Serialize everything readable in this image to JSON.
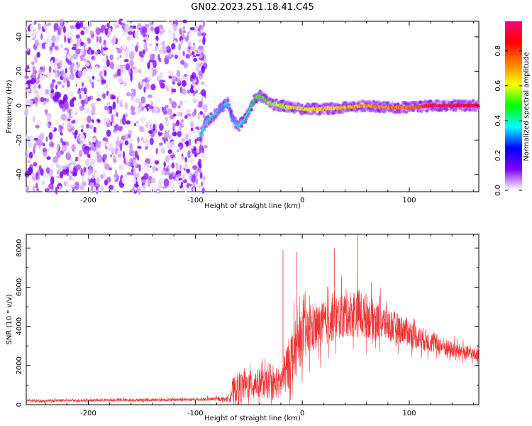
{
  "title": "GN02.2023.251.18.41.C45",
  "chart_data": [
    {
      "type": "heatmap",
      "name": "spectrogram",
      "xlabel": "Height of straight line (km)",
      "ylabel": "Frequency (Hz)",
      "xlim": [
        -258,
        165
      ],
      "ylim": [
        -50,
        49
      ],
      "xticks": [
        -200,
        -100,
        0,
        100
      ],
      "yticks": [
        -40,
        -20,
        0,
        20,
        40
      ],
      "grid": false,
      "noise_region_x": [
        -258,
        -90
      ],
      "ridge": {
        "x": [
          -95,
          -90,
          -85,
          -80,
          -75,
          -70,
          -65,
          -60,
          -55,
          -50,
          -45,
          -40,
          -35,
          -30,
          -20,
          -10,
          0,
          20,
          40,
          60,
          80,
          100,
          120,
          140,
          165
        ],
        "y": [
          -17,
          -10,
          -7,
          -4,
          -1,
          2,
          -8,
          -12,
          -9,
          -4,
          3,
          6,
          4,
          1,
          0,
          -1,
          -2,
          -2,
          -1,
          0,
          -1,
          -1,
          0,
          0,
          0
        ],
        "amplitude": [
          0.35,
          0.4,
          0.45,
          0.4,
          0.35,
          0.4,
          0.35,
          0.4,
          0.45,
          0.45,
          0.5,
          0.55,
          0.55,
          0.6,
          0.62,
          0.65,
          0.65,
          0.7,
          0.72,
          0.75,
          0.78,
          0.8,
          0.92,
          0.95,
          0.97
        ]
      },
      "colorbar": {
        "label": "Normalized spectral amplitude",
        "range": [
          0,
          0.97
        ],
        "ticks": [
          "0.0",
          "0.2",
          "0.4",
          "0.6",
          "0.8"
        ],
        "colormap": [
          "#ffffff",
          "#8000ff",
          "#0000ff",
          "#00ffff",
          "#00ff00",
          "#ffff00",
          "#ff8000",
          "#ff0000",
          "#ff0080"
        ]
      }
    },
    {
      "type": "line",
      "name": "snr",
      "xlabel": "Height of straight line (km)",
      "ylabel": "SNR (10 * v/v)",
      "xlim": [
        -258,
        165
      ],
      "ylim": [
        0,
        8700
      ],
      "xticks": [
        -200,
        -100,
        0,
        100
      ],
      "yticks": [
        0,
        2000,
        4000,
        6000,
        8000
      ],
      "grid": false,
      "color": "#ee3333",
      "envelope": {
        "x": [
          -258,
          -200,
          -150,
          -100,
          -70,
          -65,
          -60,
          -50,
          -40,
          -30,
          -20,
          -15,
          -10,
          -5,
          0,
          10,
          20,
          30,
          40,
          50,
          60,
          70,
          80,
          90,
          100,
          110,
          120,
          130,
          140,
          150,
          165
        ],
        "base": [
          200,
          220,
          240,
          260,
          300,
          700,
          900,
          1000,
          1100,
          1000,
          1100,
          1800,
          2500,
          3000,
          3500,
          3800,
          4100,
          4400,
          4600,
          4700,
          4500,
          4300,
          4100,
          3900,
          3700,
          3400,
          3200,
          3000,
          2800,
          2700,
          2500
        ],
        "amp": [
          120,
          130,
          140,
          150,
          200,
          1200,
          1400,
          1300,
          1400,
          1300,
          1500,
          2200,
          2600,
          2700,
          2500,
          2200,
          2100,
          2100,
          2100,
          2300,
          2000,
          1800,
          1600,
          1400,
          1300,
          1100,
          1000,
          900,
          800,
          700,
          600
        ]
      },
      "peak_points": [
        {
          "x": 52,
          "y": 8700
        },
        {
          "x": 30,
          "y": 8000
        },
        {
          "x": -5,
          "y": 7800
        },
        {
          "x": -18,
          "y": 7900
        }
      ]
    }
  ]
}
